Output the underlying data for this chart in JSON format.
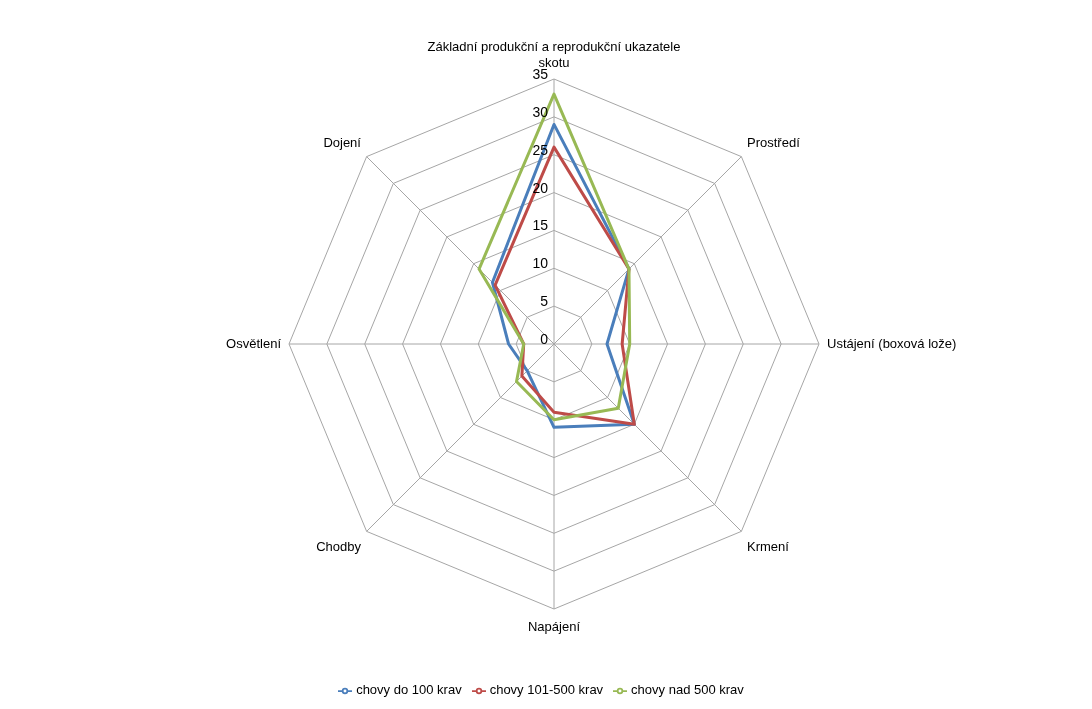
{
  "chart_data": {
    "type": "radar",
    "categories": [
      "Základní produkční a reprodukční ukazatele skotu",
      "Prostředí",
      "Ustájení (boxová lože)",
      "Krmení",
      "Napájení",
      "Chodby",
      "Osvětlení",
      "Dojení"
    ],
    "series": [
      {
        "name": "chovy do 100 krav",
        "color": "#4a7ebb",
        "values": [
          29,
          14,
          7,
          15,
          11,
          5,
          6,
          11.5
        ]
      },
      {
        "name": "chovy 101-500 krav",
        "color": "#be4b48",
        "values": [
          26,
          14,
          9,
          15,
          9,
          6,
          4,
          11
        ]
      },
      {
        "name": "chovy nad 500 krav",
        "color": "#98b954",
        "values": [
          33,
          14,
          10,
          12,
          10,
          7,
          4,
          14
        ]
      }
    ],
    "ylim": [
      0,
      35
    ],
    "yticks": [
      0,
      5,
      10,
      15,
      20,
      25,
      30,
      35
    ],
    "grid": true,
    "legend": "bottom",
    "marker": "none"
  }
}
